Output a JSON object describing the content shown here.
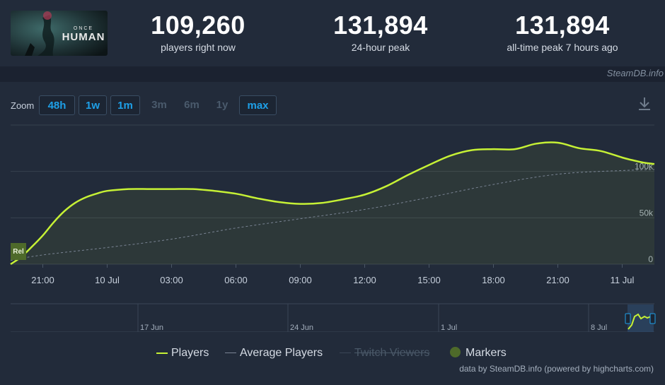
{
  "stats": [
    {
      "value": "109,260",
      "label": "players right now"
    },
    {
      "value": "131,894",
      "label": "24-hour peak"
    },
    {
      "value": "131,894",
      "label": "all-time peak 7 hours ago"
    }
  ],
  "logo": {
    "small_text": "ONCE",
    "big_text": "HUMAN"
  },
  "credit": "SteamDB.info",
  "zoom": {
    "label": "Zoom",
    "buttons": [
      {
        "label": "48h",
        "active": true
      },
      {
        "label": "1w",
        "active": true
      },
      {
        "label": "1m",
        "active": true
      },
      {
        "label": "3m",
        "active": false
      },
      {
        "label": "6m",
        "active": false
      },
      {
        "label": "1y",
        "active": false
      },
      {
        "label": "max",
        "active": true
      }
    ]
  },
  "download_icon": "download-icon",
  "colors": {
    "players": "#c6f135",
    "average": "#7a8494",
    "accent": "#1ea0e8"
  },
  "chart_data": {
    "type": "line",
    "x_start": "2024-07-09 19:30",
    "x_end": "2024-07-11 01:30",
    "x_tick_labels": [
      "21:00",
      "10 Jul",
      "03:00",
      "06:00",
      "09:00",
      "12:00",
      "15:00",
      "18:00",
      "21:00",
      "11 Jul"
    ],
    "y_tick_labels": [
      "100k",
      "50k",
      "0"
    ],
    "ylim": [
      0,
      150000
    ],
    "series": [
      {
        "name": "Players",
        "x": [
          "19:30",
          "20:00",
          "20:30",
          "21:00",
          "21:30",
          "22:00",
          "22:30",
          "23:00",
          "23:30",
          "00:00",
          "01:00",
          "02:00",
          "03:00",
          "04:00",
          "05:00",
          "06:00",
          "07:00",
          "08:00",
          "09:00",
          "10:00",
          "11:00",
          "12:00",
          "13:00",
          "14:00",
          "15:00",
          "16:00",
          "17:00",
          "18:00",
          "19:00",
          "20:00",
          "21:00",
          "22:00",
          "23:00",
          "00:00",
          "00:30",
          "01:00",
          "01:30"
        ],
        "values": [
          0,
          8000,
          19000,
          31000,
          45000,
          57000,
          66000,
          72000,
          76000,
          79000,
          81000,
          81000,
          81000,
          81000,
          79000,
          76000,
          71000,
          67000,
          65000,
          66000,
          70000,
          75000,
          84000,
          96000,
          107000,
          117000,
          123000,
          124000,
          124000,
          130000,
          131000,
          125000,
          122000,
          115000,
          112000,
          109500,
          108000
        ]
      },
      {
        "name": "Average Players",
        "x": [
          "19:30",
          "21:00",
          "00:00",
          "03:00",
          "06:00",
          "09:00",
          "12:00",
          "15:00",
          "18:00",
          "21:00",
          "00:00",
          "01:30"
        ],
        "values": [
          4000,
          10000,
          18000,
          27000,
          39000,
          49000,
          59000,
          72000,
          86000,
          97000,
          101000,
          102000
        ]
      },
      {
        "name": "Twitch Viewers",
        "values": []
      },
      {
        "name": "Markers",
        "values": []
      }
    ],
    "annotations": [
      {
        "label": "Rel",
        "x": "19:30"
      }
    ],
    "navigator": {
      "tick_labels": [
        "17 Jun",
        "24 Jun",
        "1 Jul",
        "8 Jul"
      ]
    },
    "legend": [
      "Players",
      "Average Players",
      "Twitch Viewers",
      "Markers"
    ],
    "legend_position": "bottom-center",
    "grid": true
  },
  "footer": "data by SteamDB.info (powered by highcharts.com)"
}
